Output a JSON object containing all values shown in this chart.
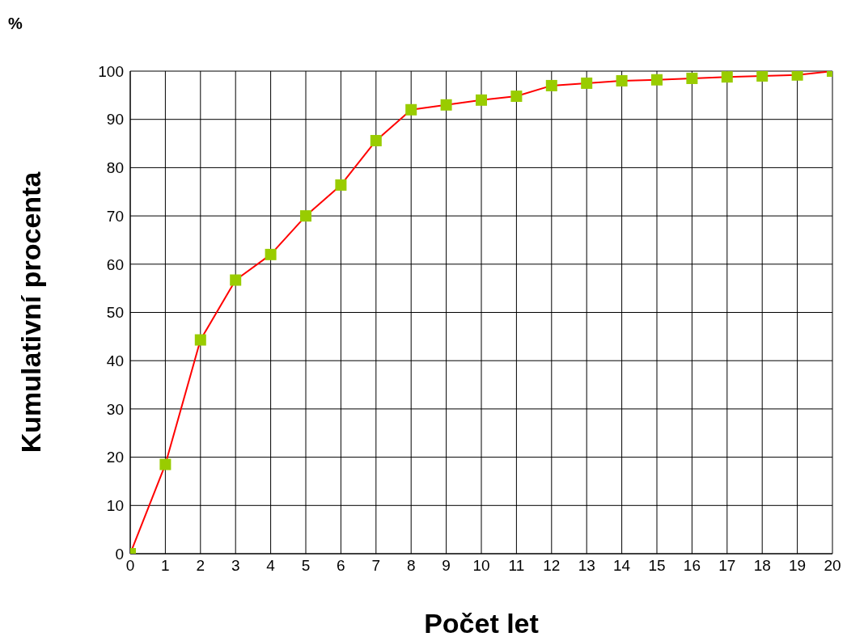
{
  "chart_data": {
    "type": "line",
    "xlabel": "Počet let",
    "ylabel": "Kumulativní procenta",
    "annotations": [
      "%"
    ],
    "x": [
      0,
      1,
      2,
      3,
      4,
      5,
      6,
      7,
      8,
      9,
      10,
      11,
      12,
      13,
      14,
      15,
      16,
      17,
      18,
      19,
      20
    ],
    "series": [
      {
        "color": "#ff0000",
        "colors": [
          "#99cc00",
          "#99cc00",
          "#99cc00",
          "#99cc00",
          "#99cc00",
          "#99cc00",
          "#99cc00",
          "#99cc00",
          "#99cc00",
          "#99cc00",
          "#99cc00",
          "#99cc00",
          "#99cc00",
          "#99cc00",
          "#99cc00",
          "#99cc00",
          "#99cc00",
          "#99cc00",
          "#99cc00",
          "#99cc00",
          "#99cc00"
        ],
        "values": [
          0,
          18.5,
          44.3,
          56.7,
          62,
          70,
          76.4,
          85.6,
          92,
          93,
          94,
          94.8,
          97,
          97.5,
          98,
          98.2,
          98.5,
          98.8,
          99,
          99.2,
          100
        ]
      }
    ],
    "xlim": [
      0,
      20
    ],
    "xticks": [
      0,
      1,
      2,
      3,
      4,
      5,
      6,
      7,
      8,
      9,
      10,
      11,
      12,
      13,
      14,
      15,
      16,
      17,
      18,
      19,
      20
    ],
    "ylim": [
      0,
      100
    ],
    "yticks": [
      0,
      10,
      20,
      30,
      40,
      50,
      60,
      70,
      80,
      90,
      100
    ],
    "grid": true,
    "marker": "square",
    "line_style": "solid"
  }
}
